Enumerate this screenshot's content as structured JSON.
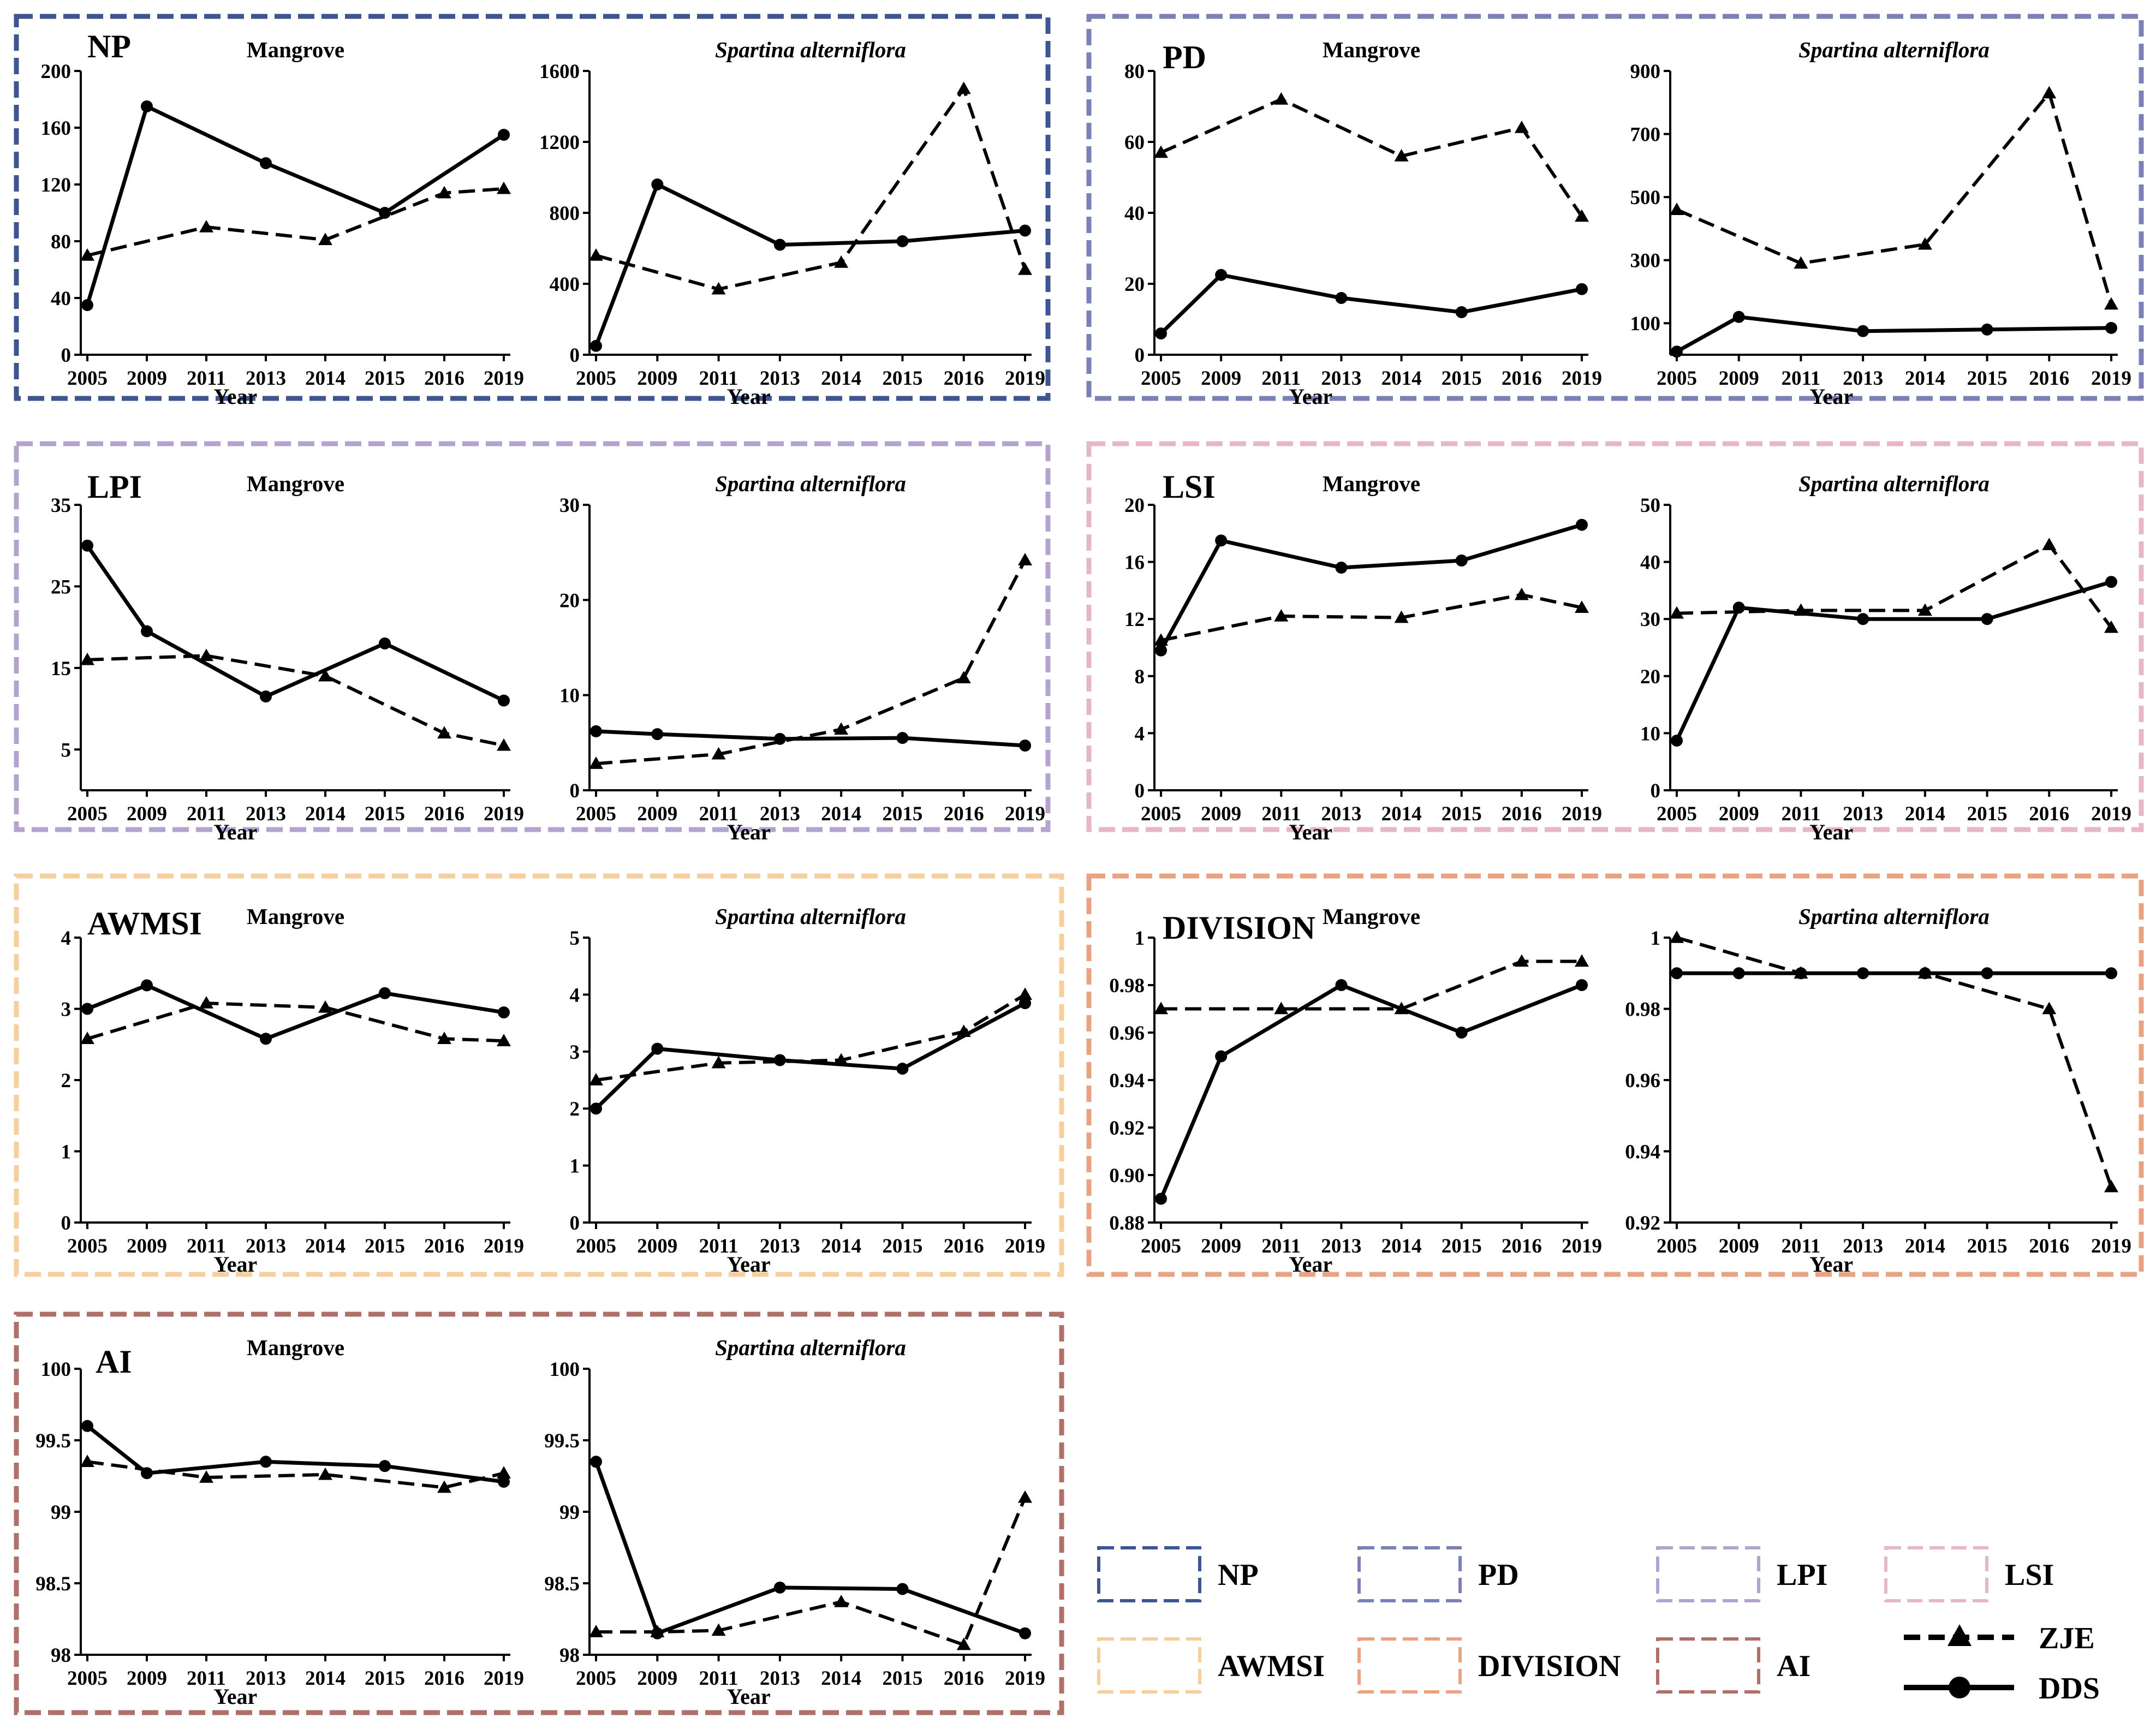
{
  "legend": {
    "metric_boxes": [
      {
        "label": "NP",
        "color": "#3d5590"
      },
      {
        "label": "PD",
        "color": "#7b80b8"
      },
      {
        "label": "LPI",
        "color": "#b3a4cf"
      },
      {
        "label": "LSI",
        "color": "#e5b7c8"
      },
      {
        "label": "AWMSI",
        "color": "#f7cf9c"
      },
      {
        "label": "DIVISION",
        "color": "#e9a381"
      },
      {
        "label": "AI",
        "color": "#b06f68"
      }
    ],
    "series": [
      {
        "label": "ZJE",
        "style": "dashed",
        "marker": "triangle"
      },
      {
        "label": "DDS",
        "style": "solid",
        "marker": "circle"
      }
    ]
  },
  "chart_data": [
    {
      "metric": "NP",
      "color": "#3d5590",
      "charts": [
        {
          "type": "line",
          "title": "Mangrove",
          "title_italic": false,
          "xlabel": "Year",
          "categories": [
            "2005",
            "2009",
            "2011",
            "2013",
            "2014",
            "2015",
            "2016",
            "2019"
          ],
          "ylim": [
            0,
            200
          ],
          "yticks": [
            0,
            40,
            80,
            120,
            160,
            200
          ],
          "series": [
            {
              "name": "ZJE",
              "x": [
                "2005",
                "2011",
                "2014",
                "2016",
                "2019"
              ],
              "values": [
                70,
                90,
                81,
                114,
                117
              ]
            },
            {
              "name": "DDS",
              "x": [
                "2005",
                "2009",
                "2013",
                "2015",
                "2019"
              ],
              "values": [
                35,
                175,
                135,
                100,
                155
              ]
            }
          ]
        },
        {
          "type": "line",
          "title": "Spartina alterniflora",
          "title_italic": true,
          "xlabel": "Year",
          "categories": [
            "2005",
            "2009",
            "2011",
            "2013",
            "2014",
            "2015",
            "2016",
            "2019"
          ],
          "ylim": [
            0,
            1600
          ],
          "yticks": [
            0,
            400,
            800,
            1200,
            1600
          ],
          "series": [
            {
              "name": "ZJE",
              "x": [
                "2005",
                "2011",
                "2014",
                "2016",
                "2019"
              ],
              "values": [
                560,
                370,
                520,
                1500,
                480
              ]
            },
            {
              "name": "DDS",
              "x": [
                "2005",
                "2009",
                "2013",
                "2015",
                "2019"
              ],
              "values": [
                50,
                960,
                620,
                640,
                700
              ]
            }
          ]
        }
      ]
    },
    {
      "metric": "PD",
      "color": "#7b80b8",
      "charts": [
        {
          "type": "line",
          "title": "Mangrove",
          "title_italic": false,
          "xlabel": "Year",
          "categories": [
            "2005",
            "2009",
            "2011",
            "2013",
            "2014",
            "2015",
            "2016",
            "2019"
          ],
          "ylim": [
            0,
            80
          ],
          "yticks": [
            0,
            20,
            40,
            60,
            80
          ],
          "series": [
            {
              "name": "ZJE",
              "x": [
                "2005",
                "2011",
                "2014",
                "2016",
                "2019"
              ],
              "values": [
                57,
                72,
                56,
                64,
                39
              ]
            },
            {
              "name": "DDS",
              "x": [
                "2005",
                "2009",
                "2013",
                "2015",
                "2019"
              ],
              "values": [
                6,
                22.5,
                16,
                12,
                18.5
              ]
            }
          ]
        },
        {
          "type": "line",
          "title": "Spartina alterniflora",
          "title_italic": true,
          "xlabel": "Year",
          "categories": [
            "2005",
            "2009",
            "2011",
            "2013",
            "2014",
            "2015",
            "2016",
            "2019"
          ],
          "ylim": [
            0,
            900
          ],
          "yticks": [
            100,
            300,
            500,
            700,
            900
          ],
          "series": [
            {
              "name": "ZJE",
              "x": [
                "2005",
                "2011",
                "2014",
                "2016",
                "2019"
              ],
              "values": [
                460,
                290,
                350,
                830,
                160
              ]
            },
            {
              "name": "DDS",
              "x": [
                "2005",
                "2009",
                "2013",
                "2015",
                "2019"
              ],
              "values": [
                10,
                120,
                75,
                80,
                85
              ]
            }
          ]
        }
      ]
    },
    {
      "metric": "LPI",
      "color": "#b3a4cf",
      "charts": [
        {
          "type": "line",
          "title": "Mangrove",
          "title_italic": false,
          "xlabel": "Year",
          "categories": [
            "2005",
            "2009",
            "2011",
            "2013",
            "2014",
            "2015",
            "2016",
            "2019"
          ],
          "ylim": [
            0,
            35
          ],
          "yticks": [
            5,
            15,
            25,
            35
          ],
          "series": [
            {
              "name": "ZJE",
              "x": [
                "2005",
                "2011",
                "2014",
                "2016",
                "2019"
              ],
              "values": [
                16,
                16.5,
                14,
                7,
                5.5
              ]
            },
            {
              "name": "DDS",
              "x": [
                "2005",
                "2009",
                "2013",
                "2015",
                "2019"
              ],
              "values": [
                30,
                19.5,
                11.5,
                18,
                11
              ]
            }
          ]
        },
        {
          "type": "line",
          "title": "Spartina alterniflora",
          "title_italic": true,
          "xlabel": "Year",
          "categories": [
            "2005",
            "2009",
            "2011",
            "2013",
            "2014",
            "2015",
            "2016",
            "2019"
          ],
          "ylim": [
            0,
            30
          ],
          "yticks": [
            0,
            10,
            20,
            30
          ],
          "series": [
            {
              "name": "ZJE",
              "x": [
                "2005",
                "2011",
                "2014",
                "2016",
                "2019"
              ],
              "values": [
                2.8,
                3.8,
                6.4,
                11.8,
                24.2
              ]
            },
            {
              "name": "DDS",
              "x": [
                "2005",
                "2009",
                "2013",
                "2015",
                "2019"
              ],
              "values": [
                6.2,
                5.9,
                5.4,
                5.5,
                4.7
              ]
            }
          ]
        }
      ]
    },
    {
      "metric": "LSI",
      "color": "#e5b7c8",
      "charts": [
        {
          "type": "line",
          "title": "Mangrove",
          "title_italic": false,
          "xlabel": "Year",
          "categories": [
            "2005",
            "2009",
            "2011",
            "2013",
            "2014",
            "2015",
            "2016",
            "2019"
          ],
          "ylim": [
            0,
            20
          ],
          "yticks": [
            0,
            4,
            8,
            12,
            16,
            20
          ],
          "series": [
            {
              "name": "ZJE",
              "x": [
                "2005",
                "2011",
                "2014",
                "2016",
                "2019"
              ],
              "values": [
                10.5,
                12.2,
                12.1,
                13.7,
                12.8
              ]
            },
            {
              "name": "DDS",
              "x": [
                "2005",
                "2009",
                "2013",
                "2015",
                "2019"
              ],
              "values": [
                9.8,
                17.5,
                15.6,
                16.1,
                18.6
              ]
            }
          ]
        },
        {
          "type": "line",
          "title": "Spartina alterniflora",
          "title_italic": true,
          "xlabel": "Year",
          "categories": [
            "2005",
            "2009",
            "2011",
            "2013",
            "2014",
            "2015",
            "2016",
            "2019"
          ],
          "ylim": [
            0,
            50
          ],
          "yticks": [
            0,
            10,
            20,
            30,
            40,
            50
          ],
          "series": [
            {
              "name": "ZJE",
              "x": [
                "2005",
                "2011",
                "2014",
                "2016",
                "2019"
              ],
              "values": [
                31,
                31.5,
                31.5,
                43,
                28.5
              ]
            },
            {
              "name": "DDS",
              "x": [
                "2005",
                "2009",
                "2013",
                "2015",
                "2019"
              ],
              "values": [
                8.7,
                32,
                30,
                30,
                36.5
              ]
            }
          ]
        }
      ]
    },
    {
      "metric": "AWMSI",
      "color": "#f7cf9c",
      "charts": [
        {
          "type": "line",
          "title": "Mangrove",
          "title_italic": false,
          "xlabel": "Year",
          "categories": [
            "2005",
            "2009",
            "2011",
            "2013",
            "2014",
            "2015",
            "2016",
            "2019"
          ],
          "ylim": [
            0,
            4
          ],
          "yticks": [
            0,
            1,
            2,
            3,
            4
          ],
          "series": [
            {
              "name": "ZJE",
              "x": [
                "2005",
                "2011",
                "2014",
                "2016",
                "2019"
              ],
              "values": [
                2.58,
                3.08,
                3.02,
                2.58,
                2.55
              ]
            },
            {
              "name": "DDS",
              "x": [
                "2005",
                "2009",
                "2013",
                "2015",
                "2019"
              ],
              "values": [
                3.0,
                3.33,
                2.58,
                3.22,
                2.95
              ]
            }
          ]
        },
        {
          "type": "line",
          "title": "Spartina alterniflora",
          "title_italic": true,
          "xlabel": "Year",
          "categories": [
            "2005",
            "2009",
            "2011",
            "2013",
            "2014",
            "2015",
            "2016",
            "2019"
          ],
          "ylim": [
            0,
            5
          ],
          "yticks": [
            0,
            1,
            2,
            3,
            4,
            5
          ],
          "series": [
            {
              "name": "ZJE",
              "x": [
                "2005",
                "2011",
                "2014",
                "2016",
                "2019"
              ],
              "values": [
                2.5,
                2.8,
                2.85,
                3.35,
                4.0
              ]
            },
            {
              "name": "DDS",
              "x": [
                "2005",
                "2009",
                "2013",
                "2015",
                "2019"
              ],
              "values": [
                2.0,
                3.05,
                2.85,
                2.7,
                3.85
              ]
            }
          ]
        }
      ]
    },
    {
      "metric": "DIVISION",
      "color": "#e9a381",
      "charts": [
        {
          "type": "line",
          "title": "Mangrove",
          "title_italic": false,
          "xlabel": "Year",
          "categories": [
            "2005",
            "2009",
            "2011",
            "2013",
            "2014",
            "2015",
            "2016",
            "2019"
          ],
          "ylim": [
            0.88,
            1.0
          ],
          "yticks": [
            0.88,
            0.9,
            0.92,
            0.94,
            0.96,
            0.98,
            1.0
          ],
          "ytick_labels": [
            "0.88",
            "0.90",
            "0.92",
            "0.94",
            "0.96",
            "0.98",
            "1"
          ],
          "series": [
            {
              "name": "ZJE",
              "x": [
                "2005",
                "2011",
                "2014",
                "2016",
                "2019"
              ],
              "values": [
                0.97,
                0.97,
                0.97,
                0.99,
                0.99
              ]
            },
            {
              "name": "DDS",
              "x": [
                "2005",
                "2009",
                "2013",
                "2015",
                "2019"
              ],
              "values": [
                0.89,
                0.95,
                0.98,
                0.96,
                0.98
              ]
            }
          ]
        },
        {
          "type": "line",
          "title": "Spartina alterniflora",
          "title_italic": true,
          "xlabel": "Year",
          "categories": [
            "2005",
            "2009",
            "2011",
            "2013",
            "2014",
            "2015",
            "2016",
            "2019"
          ],
          "ylim": [
            0.92,
            1.0
          ],
          "yticks": [
            0.92,
            0.94,
            0.96,
            0.98,
            1.0
          ],
          "ytick_labels": [
            "0.92",
            "0.94",
            "0.96",
            "0.98",
            "1"
          ],
          "series": [
            {
              "name": "ZJE",
              "x": [
                "2005",
                "2011",
                "2014",
                "2016",
                "2019"
              ],
              "values": [
                1.0,
                0.99,
                0.99,
                0.98,
                0.93
              ]
            },
            {
              "name": "DDS",
              "x": [
                "2005",
                "2009",
                "2011",
                "2013",
                "2014",
                "2015",
                "2019"
              ],
              "values": [
                0.99,
                0.99,
                0.99,
                0.99,
                0.99,
                0.99,
                0.99
              ]
            }
          ]
        }
      ]
    },
    {
      "metric": "AI",
      "color": "#b06f68",
      "charts": [
        {
          "type": "line",
          "title": "Mangrove",
          "title_italic": false,
          "xlabel": "Year",
          "categories": [
            "2005",
            "2009",
            "2011",
            "2013",
            "2014",
            "2015",
            "2016",
            "2019"
          ],
          "ylim": [
            98,
            100
          ],
          "yticks": [
            98,
            98.5,
            99,
            99.5,
            100
          ],
          "series": [
            {
              "name": "ZJE",
              "x": [
                "2005",
                "2011",
                "2014",
                "2016",
                "2019"
              ],
              "values": [
                99.35,
                99.24,
                99.26,
                99.17,
                99.27
              ]
            },
            {
              "name": "DDS",
              "x": [
                "2005",
                "2009",
                "2013",
                "2015",
                "2019"
              ],
              "values": [
                99.6,
                99.27,
                99.35,
                99.32,
                99.21
              ]
            }
          ]
        },
        {
          "type": "line",
          "title": "Spartina alterniflora",
          "title_italic": true,
          "xlabel": "Year",
          "categories": [
            "2005",
            "2009",
            "2011",
            "2013",
            "2014",
            "2015",
            "2016",
            "2019"
          ],
          "ylim": [
            98,
            100
          ],
          "yticks": [
            98,
            98.5,
            99,
            99.5,
            100
          ],
          "series": [
            {
              "name": "ZJE",
              "x": [
                "2005",
                "2009",
                "2011",
                "2014",
                "2016",
                "2019"
              ],
              "values": [
                98.16,
                98.16,
                98.17,
                98.37,
                98.07,
                99.1
              ]
            },
            {
              "name": "DDS",
              "x": [
                "2005",
                "2009",
                "2013",
                "2015",
                "2019"
              ],
              "values": [
                99.35,
                98.15,
                98.47,
                98.46,
                98.15
              ]
            }
          ]
        }
      ]
    }
  ]
}
